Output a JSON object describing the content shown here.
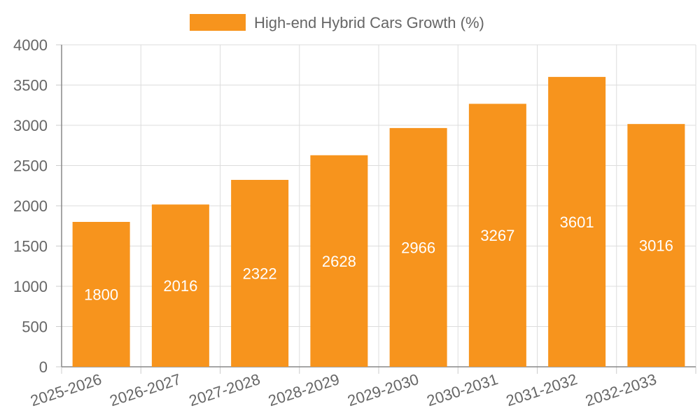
{
  "chart_data": {
    "type": "bar",
    "categories": [
      "2025-2026",
      "2026-2027",
      "2027-2028",
      "2028-2029",
      "2029-2030",
      "2030-2031",
      "2031-2032",
      "2032-2033"
    ],
    "series": [
      {
        "name": "High-end Hybrid Cars Growth (%)",
        "values": [
          1800,
          2016,
          2322,
          2628,
          2966,
          3267,
          3601,
          3016
        ],
        "color": "#f7941d"
      }
    ],
    "ylim": [
      0,
      4000
    ],
    "yticks": [
      "0",
      "500",
      "1000",
      "1500",
      "2000",
      "2500",
      "3000",
      "3500",
      "4000"
    ],
    "grid": true,
    "legend_position": "top-center",
    "data_labels": true,
    "x_tick_rotation": "slanted"
  }
}
